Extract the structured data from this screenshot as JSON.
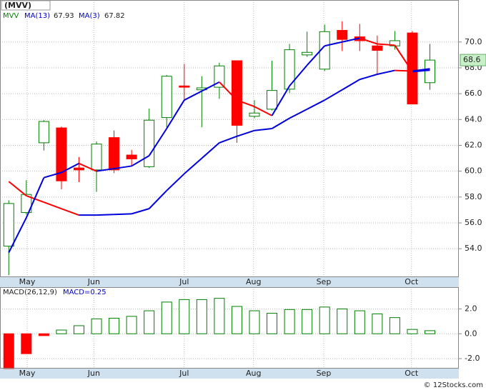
{
  "chart_data": [
    {
      "type": "candlestick",
      "title": "(MVV)",
      "x": [
        0,
        1,
        2,
        3,
        4,
        5,
        6,
        7,
        8,
        9,
        10,
        11,
        12,
        13,
        14,
        15,
        16,
        17,
        18,
        19,
        20,
        21,
        22,
        23,
        24
      ],
      "xlim": [
        -0.5,
        25.65
      ],
      "xticks": [
        {
          "value": 1.05,
          "label": "May"
        },
        {
          "value": 4.85,
          "label": "Jun"
        },
        {
          "value": 10.0,
          "label": "Jul"
        },
        {
          "value": 13.95,
          "label": "Aug"
        },
        {
          "value": 17.95,
          "label": "Sep"
        },
        {
          "value": 22.95,
          "label": "Oct"
        }
      ],
      "ylim": [
        51.8,
        73.25
      ],
      "yticks": [
        {
          "value": 54,
          "label": "54.0"
        },
        {
          "value": 56,
          "label": "56.0"
        },
        {
          "value": 58,
          "label": "58.0"
        },
        {
          "value": 60,
          "label": "60.0"
        },
        {
          "value": 62,
          "label": "62.0"
        },
        {
          "value": 64,
          "label": "64.0"
        },
        {
          "value": 66,
          "label": "66.0"
        },
        {
          "value": 68,
          "label": "68.0"
        },
        {
          "value": 70,
          "label": "70.0"
        }
      ],
      "grid": true,
      "candles": {
        "name": "MVV",
        "up_color": "#008000",
        "down_color": "#ff0000",
        "open": [
          54.2,
          56.8,
          62.2,
          63.35,
          60.25,
          60.1,
          62.6,
          61.25,
          60.35,
          64.15,
          66.6,
          66.3,
          66.5,
          68.55,
          64.25,
          64.8,
          66.35,
          69.0,
          67.9,
          70.9,
          70.4,
          69.7,
          69.7,
          70.7,
          66.85
        ],
        "high": [
          57.75,
          59.3,
          63.95,
          63.45,
          61.1,
          62.3,
          63.15,
          61.65,
          64.85,
          67.45,
          68.3,
          67.35,
          68.4,
          68.55,
          65.5,
          68.55,
          69.85,
          70.8,
          71.35,
          71.6,
          71.4,
          70.5,
          70.85,
          70.85,
          69.85
        ],
        "low": [
          51.95,
          56.65,
          61.6,
          58.6,
          59.15,
          58.4,
          59.85,
          60.4,
          60.25,
          63.4,
          65.4,
          63.4,
          65.6,
          62.2,
          64.1,
          64.7,
          66.05,
          68.85,
          67.75,
          69.3,
          69.3,
          67.45,
          69.4,
          65.2,
          66.3
        ],
        "close": [
          57.5,
          58.2,
          63.85,
          59.25,
          60.1,
          62.1,
          60.1,
          60.95,
          63.95,
          67.35,
          66.5,
          66.45,
          68.15,
          63.55,
          64.5,
          66.25,
          69.4,
          69.2,
          70.8,
          70.2,
          70.1,
          69.35,
          70.1,
          65.2,
          68.6
        ]
      },
      "series": [
        {
          "name": "MA(13)",
          "up_color": "#0000dd",
          "down_color": "#ff0000",
          "values": [
            59.2,
            58.1,
            57.6,
            57.1,
            56.6,
            56.6,
            56.65,
            56.7,
            57.1,
            58.5,
            59.8,
            61.0,
            62.2,
            62.7,
            63.15,
            63.3,
            64.1,
            64.8,
            65.5,
            66.3,
            67.1,
            67.5,
            67.8,
            67.75,
            67.93
          ]
        },
        {
          "name": "MA(3)",
          "up_color": "#0000dd",
          "down_color": "#ff0000",
          "values": [
            53.7,
            56.4,
            59.5,
            59.9,
            60.6,
            60.0,
            60.2,
            60.4,
            61.2,
            63.3,
            65.5,
            66.2,
            66.9,
            65.5,
            65.0,
            64.3,
            66.6,
            68.2,
            69.7,
            70.0,
            70.3,
            69.85,
            69.75,
            67.7,
            67.82
          ]
        }
      ]
    },
    {
      "type": "bar",
      "title": "MACD(26,12,9)",
      "legend": "MACD=0.25",
      "x": [
        0,
        1,
        2,
        3,
        4,
        5,
        6,
        7,
        8,
        9,
        10,
        11,
        12,
        13,
        14,
        15,
        16,
        17,
        18,
        19,
        20,
        21,
        22,
        23,
        24
      ],
      "xlim": [
        -0.5,
        25.65
      ],
      "xticks": [
        {
          "value": 1.05,
          "label": "May"
        },
        {
          "value": 4.85,
          "label": "Jun"
        },
        {
          "value": 10.0,
          "label": "Jul"
        },
        {
          "value": 13.95,
          "label": "Aug"
        },
        {
          "value": 17.95,
          "label": "Sep"
        },
        {
          "value": 22.95,
          "label": "Oct"
        }
      ],
      "ylim": [
        -2.8,
        3.75
      ],
      "yticks": [
        {
          "value": -2,
          "label": "-2.0"
        },
        {
          "value": 0,
          "label": "0.0"
        },
        {
          "value": 2,
          "label": "2.0"
        }
      ],
      "grid": true,
      "up_color": "#008000",
      "down_color": "#ff0000",
      "values": [
        -2.8,
        -1.6,
        -0.15,
        0.3,
        0.65,
        1.2,
        1.25,
        1.4,
        1.85,
        2.55,
        2.75,
        2.75,
        2.85,
        2.2,
        1.85,
        1.65,
        1.95,
        1.95,
        2.15,
        2.0,
        1.85,
        1.6,
        1.3,
        0.35,
        0.25
      ]
    }
  ],
  "footer": "© 12Stocks.com"
}
